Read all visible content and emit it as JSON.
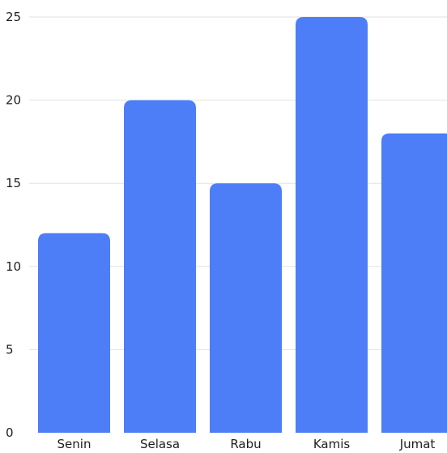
{
  "colors": {
    "bar": "#4d7ef7",
    "grid": "#e2e2e2",
    "text": "#1e1e1e"
  },
  "chart_data": {
    "type": "bar",
    "categories": [
      "Senin",
      "Selasa",
      "Rabu",
      "Kamis",
      "Jumat"
    ],
    "series": [
      {
        "values": [
          12,
          20,
          15,
          25,
          18
        ]
      }
    ],
    "ylim": [
      0,
      25
    ],
    "yticks": [
      0,
      5,
      10,
      15,
      20,
      25
    ],
    "grid": true,
    "legend": "none"
  }
}
